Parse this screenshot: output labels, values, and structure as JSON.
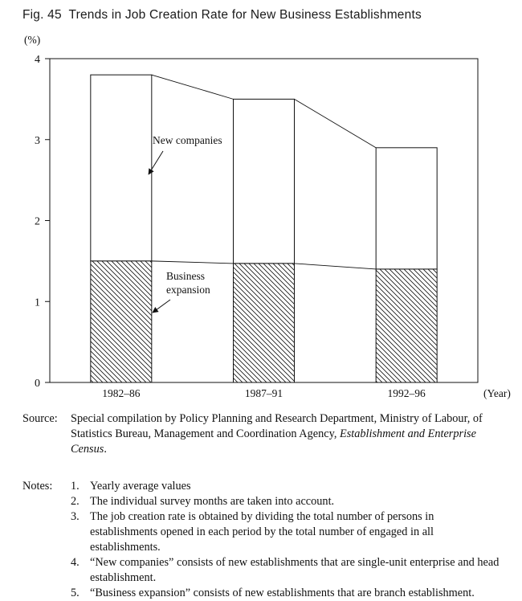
{
  "title": "Fig. 45  Trends in Job Creation Rate for New Business Establishments",
  "chart_data": {
    "type": "bar",
    "stacked": true,
    "ylabel_unit": "(%)",
    "xlabel_unit": "(Year)",
    "ylim": [
      0,
      4
    ],
    "yticks": [
      0,
      1,
      2,
      3,
      4
    ],
    "grid": false,
    "categories": [
      "1982–86",
      "1987–91",
      "1992–96"
    ],
    "series": [
      {
        "name": "Business expansion",
        "pattern": "diagonal-hatch",
        "values": [
          1.5,
          1.47,
          1.4
        ]
      },
      {
        "name": "New companies",
        "pattern": "white",
        "values": [
          2.3,
          2.03,
          1.5
        ]
      }
    ],
    "totals": [
      3.8,
      3.5,
      2.9
    ],
    "legend": "inline-annotations"
  },
  "source": {
    "label": "Source:",
    "text": "Special compilation by Policy Planning and Research Department, Ministry of Labour, of Statistics Bureau, Management and Coordination Agency, ",
    "italic_text": "Establishment and Enterprise Census",
    "suffix": "."
  },
  "notes": {
    "label": "Notes:",
    "items": [
      {
        "num": "1.",
        "text": "Yearly average values"
      },
      {
        "num": "2.",
        "text": "The individual survey months are taken into account."
      },
      {
        "num": "3.",
        "text": "The job creation rate is obtained by dividing the total number of persons in establishments opened in each period by the total number of engaged in all establishments."
      },
      {
        "num": "4.",
        "text": "“New companies” consists of new establishments that are single-unit enterprise and head establishment."
      },
      {
        "num": "5.",
        "text": "“Business expansion” consists of new establishments that are branch establishment."
      }
    ]
  }
}
